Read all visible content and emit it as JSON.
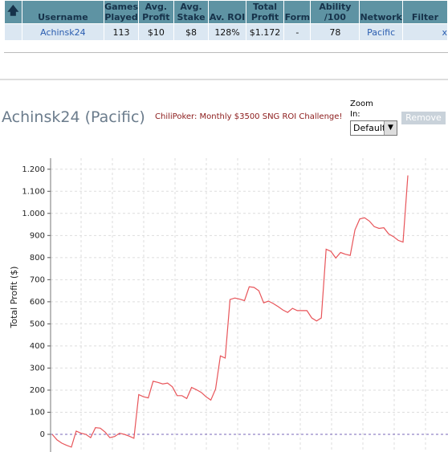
{
  "table": {
    "header": [
      "Username",
      "Games Played",
      "Avg. Profit",
      "Avg. Stake",
      "Av. ROI",
      "Total Profit",
      "Form",
      "Ability /100",
      "Network",
      "Filter"
    ],
    "rows": [
      [
        "Achinsk24",
        "113",
        "$10",
        "$8",
        "128%",
        "$1.172",
        "-",
        "78",
        "Pacific",
        "x"
      ]
    ]
  },
  "player": {
    "title": "Achinsk24 (Pacific)",
    "promo": "ChiliPoker: Monthly $3500 SNG ROI Challenge!",
    "zoom_label": "Zoom In:",
    "zoom_option": "Default",
    "remove": "Remove"
  },
  "chart_data": {
    "type": "line",
    "y_label": "Total Profit ($)",
    "series": [
      {
        "name": "Achinsk24",
        "color": "#e8555a",
        "values": [
          0,
          -25,
          -40,
          -50,
          -58,
          15,
          5,
          0,
          -15,
          30,
          28,
          10,
          -15,
          -10,
          5,
          0,
          -8,
          -18,
          180,
          170,
          165,
          240,
          235,
          228,
          232,
          215,
          175,
          175,
          162,
          212,
          202,
          190,
          170,
          155,
          205,
          355,
          345,
          610,
          617,
          612,
          605,
          668,
          665,
          650,
          595,
          603,
          592,
          578,
          563,
          552,
          570,
          560,
          560,
          560,
          527,
          513,
          527,
          838,
          828,
          798,
          823,
          815,
          810,
          925,
          975,
          980,
          965,
          940,
          932,
          935,
          907,
          895,
          878,
          870,
          1172
        ]
      }
    ],
    "ylim": [
      -80,
      1250
    ],
    "yticks": [
      0,
      100,
      200,
      300,
      400,
      500,
      600,
      700,
      800,
      900,
      {
        "value": 1000,
        "label": "1.000"
      },
      {
        "value": 1100,
        "label": "1.100"
      },
      {
        "value": 1200,
        "label": "1.200"
      }
    ],
    "grid": true,
    "zero_line_color": "#7a66b8"
  }
}
